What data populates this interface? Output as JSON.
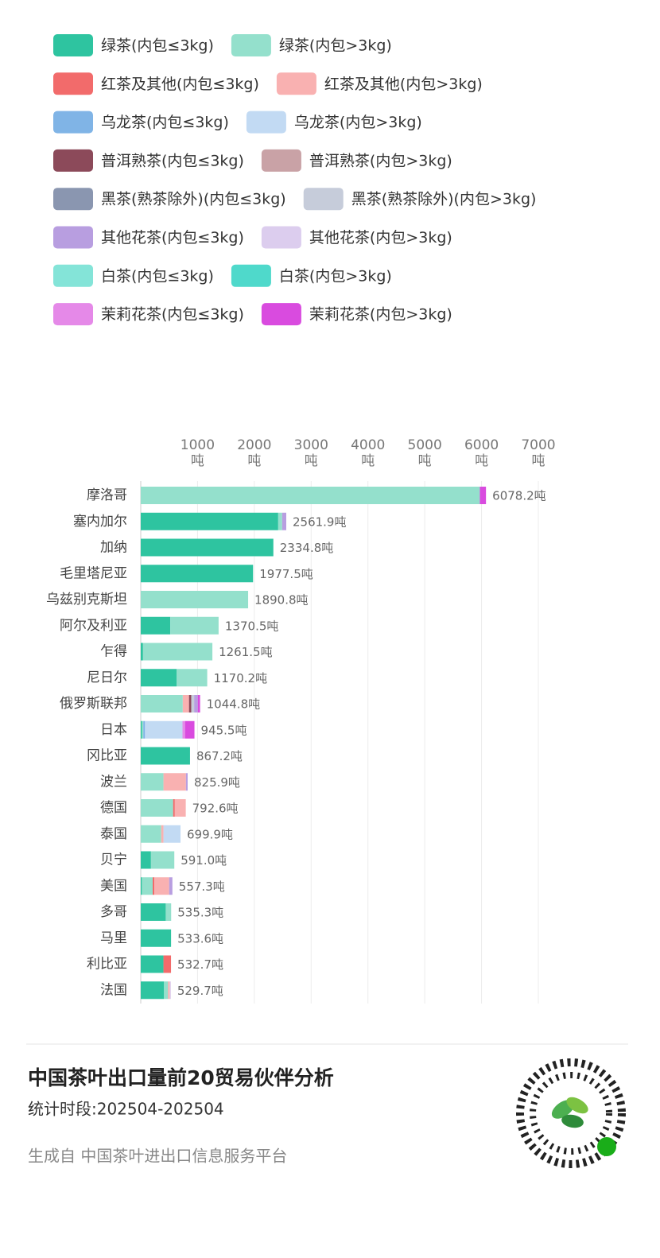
{
  "chart_data": {
    "type": "stacked-barh",
    "title": "中国茶叶出口量前20贸易伙伴分析",
    "subtitle": "统计时段:202504-202504",
    "source": "生成自 中国茶叶进出口信息服务平台",
    "categories": [
      "摩洛哥",
      "塞内加尔",
      "加纳",
      "毛里塔尼亚",
      "乌兹别克斯坦",
      "阿尔及利亚",
      "乍得",
      "尼日尔",
      "俄罗斯联邦",
      "日本",
      "冈比亚",
      "波兰",
      "德国",
      "泰国",
      "贝宁",
      "美国",
      "多哥",
      "马里",
      "利比亚",
      "法国"
    ],
    "series": [
      {
        "name": "绿茶(内包≤3kg)",
        "color": "#2ec4a0",
        "values": [
          0,
          2420,
          2334.8,
          1977.5,
          0,
          520,
          40,
          630,
          0,
          20,
          867.2,
          0,
          0,
          0,
          180,
          20,
          440,
          533.6,
          400,
          410
        ]
      },
      {
        "name": "绿茶(内包>3kg)",
        "color": "#94e0cc",
        "values": [
          5970,
          70,
          0,
          0,
          1890.8,
          850.5,
          1221.5,
          540.2,
          740,
          25,
          0,
          400,
          570,
          360,
          411,
          190,
          95.3,
          0,
          0,
          70
        ]
      },
      {
        "name": "红茶及其他(内包≤3kg)",
        "color": "#f26b6b",
        "values": [
          0,
          0,
          0,
          0,
          0,
          0,
          0,
          0,
          0,
          0,
          0,
          0,
          30,
          0,
          0,
          30,
          0,
          0,
          132.7,
          0
        ]
      },
      {
        "name": "红茶及其他(内包>3kg)",
        "color": "#f9b1b1",
        "values": [
          0,
          0,
          0,
          0,
          0,
          0,
          0,
          0,
          110,
          0,
          0,
          395.9,
          192.6,
          40,
          0,
          260,
          0,
          0,
          0,
          30
        ]
      },
      {
        "name": "乌龙茶(内包≤3kg)",
        "color": "#80b4e6",
        "values": [
          0,
          0,
          0,
          0,
          0,
          0,
          0,
          0,
          0,
          30,
          0,
          0,
          0,
          0,
          0,
          0,
          0,
          0,
          0,
          0
        ]
      },
      {
        "name": "乌龙茶(内包>3kg)",
        "color": "#c2daf3",
        "values": [
          0,
          0,
          0,
          0,
          0,
          0,
          0,
          0,
          0,
          660,
          0,
          0,
          0,
          299.9,
          0,
          0,
          0,
          0,
          0,
          0
        ]
      },
      {
        "name": "普洱熟茶(内包≤3kg)",
        "color": "#8c4a5a",
        "values": [
          0,
          0,
          0,
          0,
          0,
          0,
          0,
          0,
          40,
          0,
          0,
          0,
          0,
          0,
          0,
          0,
          0,
          0,
          0,
          0
        ]
      },
      {
        "name": "普洱熟茶(内包>3kg)",
        "color": "#c9a2a6",
        "values": [
          0,
          0,
          0,
          0,
          0,
          0,
          0,
          0,
          0,
          0,
          0,
          0,
          0,
          0,
          0,
          0,
          0,
          0,
          0,
          0
        ]
      },
      {
        "name": "黑茶(熟茶除外)(内包≤3kg)",
        "color": "#8a96b0",
        "values": [
          0,
          0,
          0,
          0,
          0,
          0,
          0,
          0,
          0,
          0,
          0,
          0,
          0,
          0,
          0,
          0,
          0,
          0,
          0,
          0
        ]
      },
      {
        "name": "黑茶(熟茶除外)(内包>3kg)",
        "color": "#c6ccda",
        "values": [
          0,
          0,
          0,
          0,
          0,
          0,
          0,
          0,
          50,
          0,
          0,
          0,
          0,
          0,
          0,
          0,
          0,
          0,
          0,
          0
        ]
      },
      {
        "name": "其他花茶(内包≤3kg)",
        "color": "#b89ee0",
        "values": [
          0,
          71.9,
          0,
          0,
          0,
          0,
          0,
          0,
          64.8,
          0,
          0,
          30,
          0,
          0,
          0,
          57.3,
          0,
          0,
          0,
          0
        ]
      },
      {
        "name": "其他花茶(内包>3kg)",
        "color": "#dccdee",
        "values": [
          0,
          0,
          0,
          0,
          0,
          0,
          0,
          0,
          0,
          0,
          0,
          0,
          0,
          0,
          0,
          0,
          0,
          0,
          0,
          19.7
        ]
      },
      {
        "name": "白茶(内包≤3kg)",
        "color": "#84e4d8",
        "values": [
          0,
          0,
          0,
          0,
          0,
          0,
          0,
          0,
          0,
          0,
          0,
          0,
          0,
          0,
          0,
          0,
          0,
          0,
          0,
          0
        ]
      },
      {
        "name": "白茶(内包>3kg)",
        "color": "#4fd9cb",
        "values": [
          0,
          0,
          0,
          0,
          0,
          0,
          0,
          0,
          0,
          0,
          0,
          0,
          0,
          0,
          0,
          0,
          0,
          0,
          0,
          0
        ]
      },
      {
        "name": "茉莉花茶(内包≤3kg)",
        "color": "#e589e8",
        "values": [
          0,
          0,
          0,
          0,
          0,
          0,
          0,
          0,
          0,
          45,
          0,
          0,
          0,
          0,
          0,
          0,
          0,
          0,
          0,
          0
        ]
      },
      {
        "name": "茉莉花茶(内包>3kg)",
        "color": "#d94bdf",
        "values": [
          108.2,
          0,
          0,
          0,
          0,
          0,
          0,
          0,
          40,
          165.5,
          0,
          0,
          0,
          0,
          0,
          0,
          0,
          0,
          0,
          0
        ]
      }
    ],
    "totals": [
      6078.2,
      2561.9,
      2334.8,
      1977.5,
      1890.8,
      1370.5,
      1261.5,
      1170.2,
      1044.8,
      945.5,
      867.2,
      825.9,
      792.6,
      699.9,
      591.0,
      557.3,
      535.3,
      533.6,
      532.7,
      529.7
    ],
    "value_labels": [
      "6078.2吨",
      "2561.9吨",
      "2334.8吨",
      "1977.5吨",
      "1890.8吨",
      "1370.5吨",
      "1261.5吨",
      "1170.2吨",
      "1044.8吨",
      "945.5吨",
      "867.2吨",
      "825.9吨",
      "792.6吨",
      "699.9吨",
      "591.0吨",
      "557.3吨",
      "535.3吨",
      "533.6吨",
      "532.7吨",
      "529.7吨"
    ],
    "xlim": [
      0,
      7000
    ],
    "xticks": [
      {
        "value": 1000,
        "label": "1000 吨"
      },
      {
        "value": 2000,
        "label": "2000 吨"
      },
      {
        "value": 3000,
        "label": "3000 吨"
      },
      {
        "value": 4000,
        "label": "4000 吨"
      },
      {
        "value": 5000,
        "label": "5000 吨"
      },
      {
        "value": 6000,
        "label": "6000 吨"
      },
      {
        "value": 7000,
        "label": "7000 吨"
      }
    ],
    "grid": true
  }
}
